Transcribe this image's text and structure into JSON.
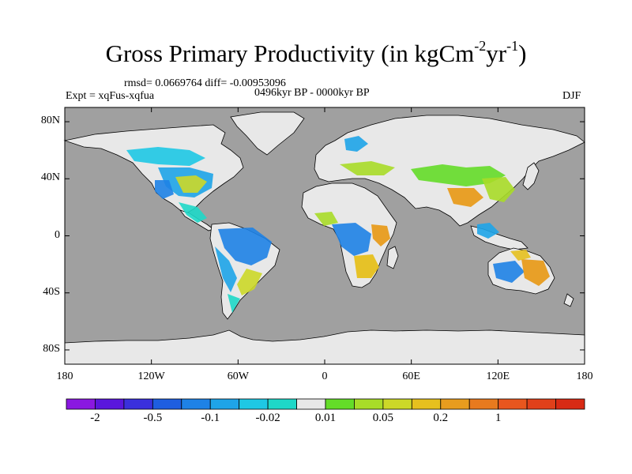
{
  "title": {
    "main": "Gross Primary Productivity (in kgCm",
    "sup1": "-2",
    "mid": "yr",
    "sup2": "-1",
    "end": ")"
  },
  "stats_line": "rmsd= 0.0669764 diff= -0.00953096",
  "left_label": "Expt = xqFus-xqfua",
  "center_label": "0496kyr BP - 0000kyr BP",
  "right_label": "DJF",
  "lat_ticks": [
    {
      "label": "80N",
      "lat": 80
    },
    {
      "label": "40N",
      "lat": 40
    },
    {
      "label": "0",
      "lat": 0
    },
    {
      "label": "40S",
      "lat": -40
    },
    {
      "label": "80S",
      "lat": -80
    }
  ],
  "lon_ticks": [
    {
      "label": "180",
      "lon": -180
    },
    {
      "label": "120W",
      "lon": -120
    },
    {
      "label": "60W",
      "lon": -60
    },
    {
      "label": "0",
      "lon": 0
    },
    {
      "label": "60E",
      "lon": 60
    },
    {
      "label": "120E",
      "lon": 120
    },
    {
      "label": "180",
      "lon": 180
    }
  ],
  "colorbar": {
    "colors": [
      "#8a18e0",
      "#5a16dc",
      "#3a30dc",
      "#1e5ee0",
      "#1e82e6",
      "#1ea4e8",
      "#1ec8e4",
      "#1ed8c8",
      "#e8e8e8",
      "#64dc28",
      "#a8dc28",
      "#ccd828",
      "#e6c01e",
      "#e89c1e",
      "#e87a1e",
      "#e8561e",
      "#e0401a",
      "#d82a14"
    ],
    "labels": [
      {
        "text": "-2",
        "boundary": 1
      },
      {
        "text": "-0.5",
        "boundary": 3
      },
      {
        "text": "-0.1",
        "boundary": 5
      },
      {
        "text": "-0.02",
        "boundary": 7
      },
      {
        "text": "0.01",
        "boundary": 9
      },
      {
        "text": "0.05",
        "boundary": 11
      },
      {
        "text": "0.2",
        "boundary": 13
      },
      {
        "text": "1",
        "boundary": 15
      }
    ]
  },
  "colors": {
    "ocean": "#a0a0a0",
    "land_neutral": "#e8e8e8",
    "coast": "#000000"
  }
}
